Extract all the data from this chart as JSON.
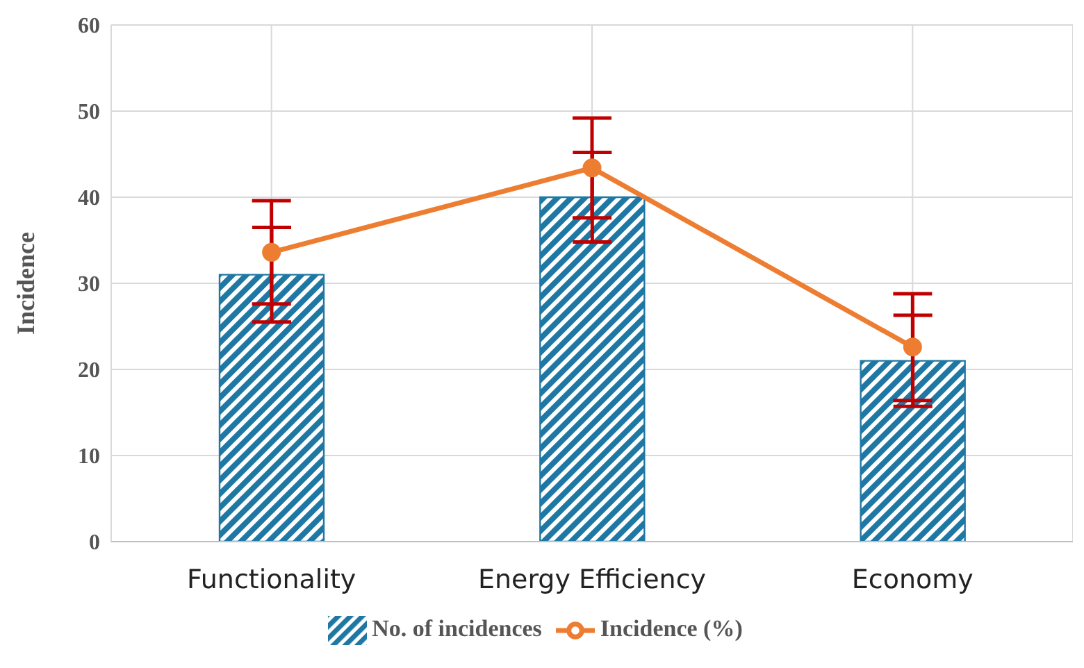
{
  "chart_data": {
    "type": "bar",
    "categories": [
      "Functionality",
      "Energy Efficiency",
      "Economy"
    ],
    "ylabel": "Incidence",
    "series": [
      {
        "name": "No. of incidences",
        "color": "#1f78a4",
        "values": [
          31,
          40,
          21
        ],
        "errors": [
          5.5,
          5.2,
          5.3
        ]
      },
      {
        "name": "Incidence (%)",
        "type": "line",
        "color": "#ed7d31",
        "values": [
          33.6,
          43.4,
          22.6
        ],
        "errors": [
          6,
          5.8,
          6.2
        ],
        "marker": "circle"
      }
    ],
    "ylim": [
      0,
      60
    ],
    "yticks": [
      0,
      10,
      20,
      30,
      40,
      50,
      60
    ],
    "grid": true,
    "legend": "bottom"
  }
}
